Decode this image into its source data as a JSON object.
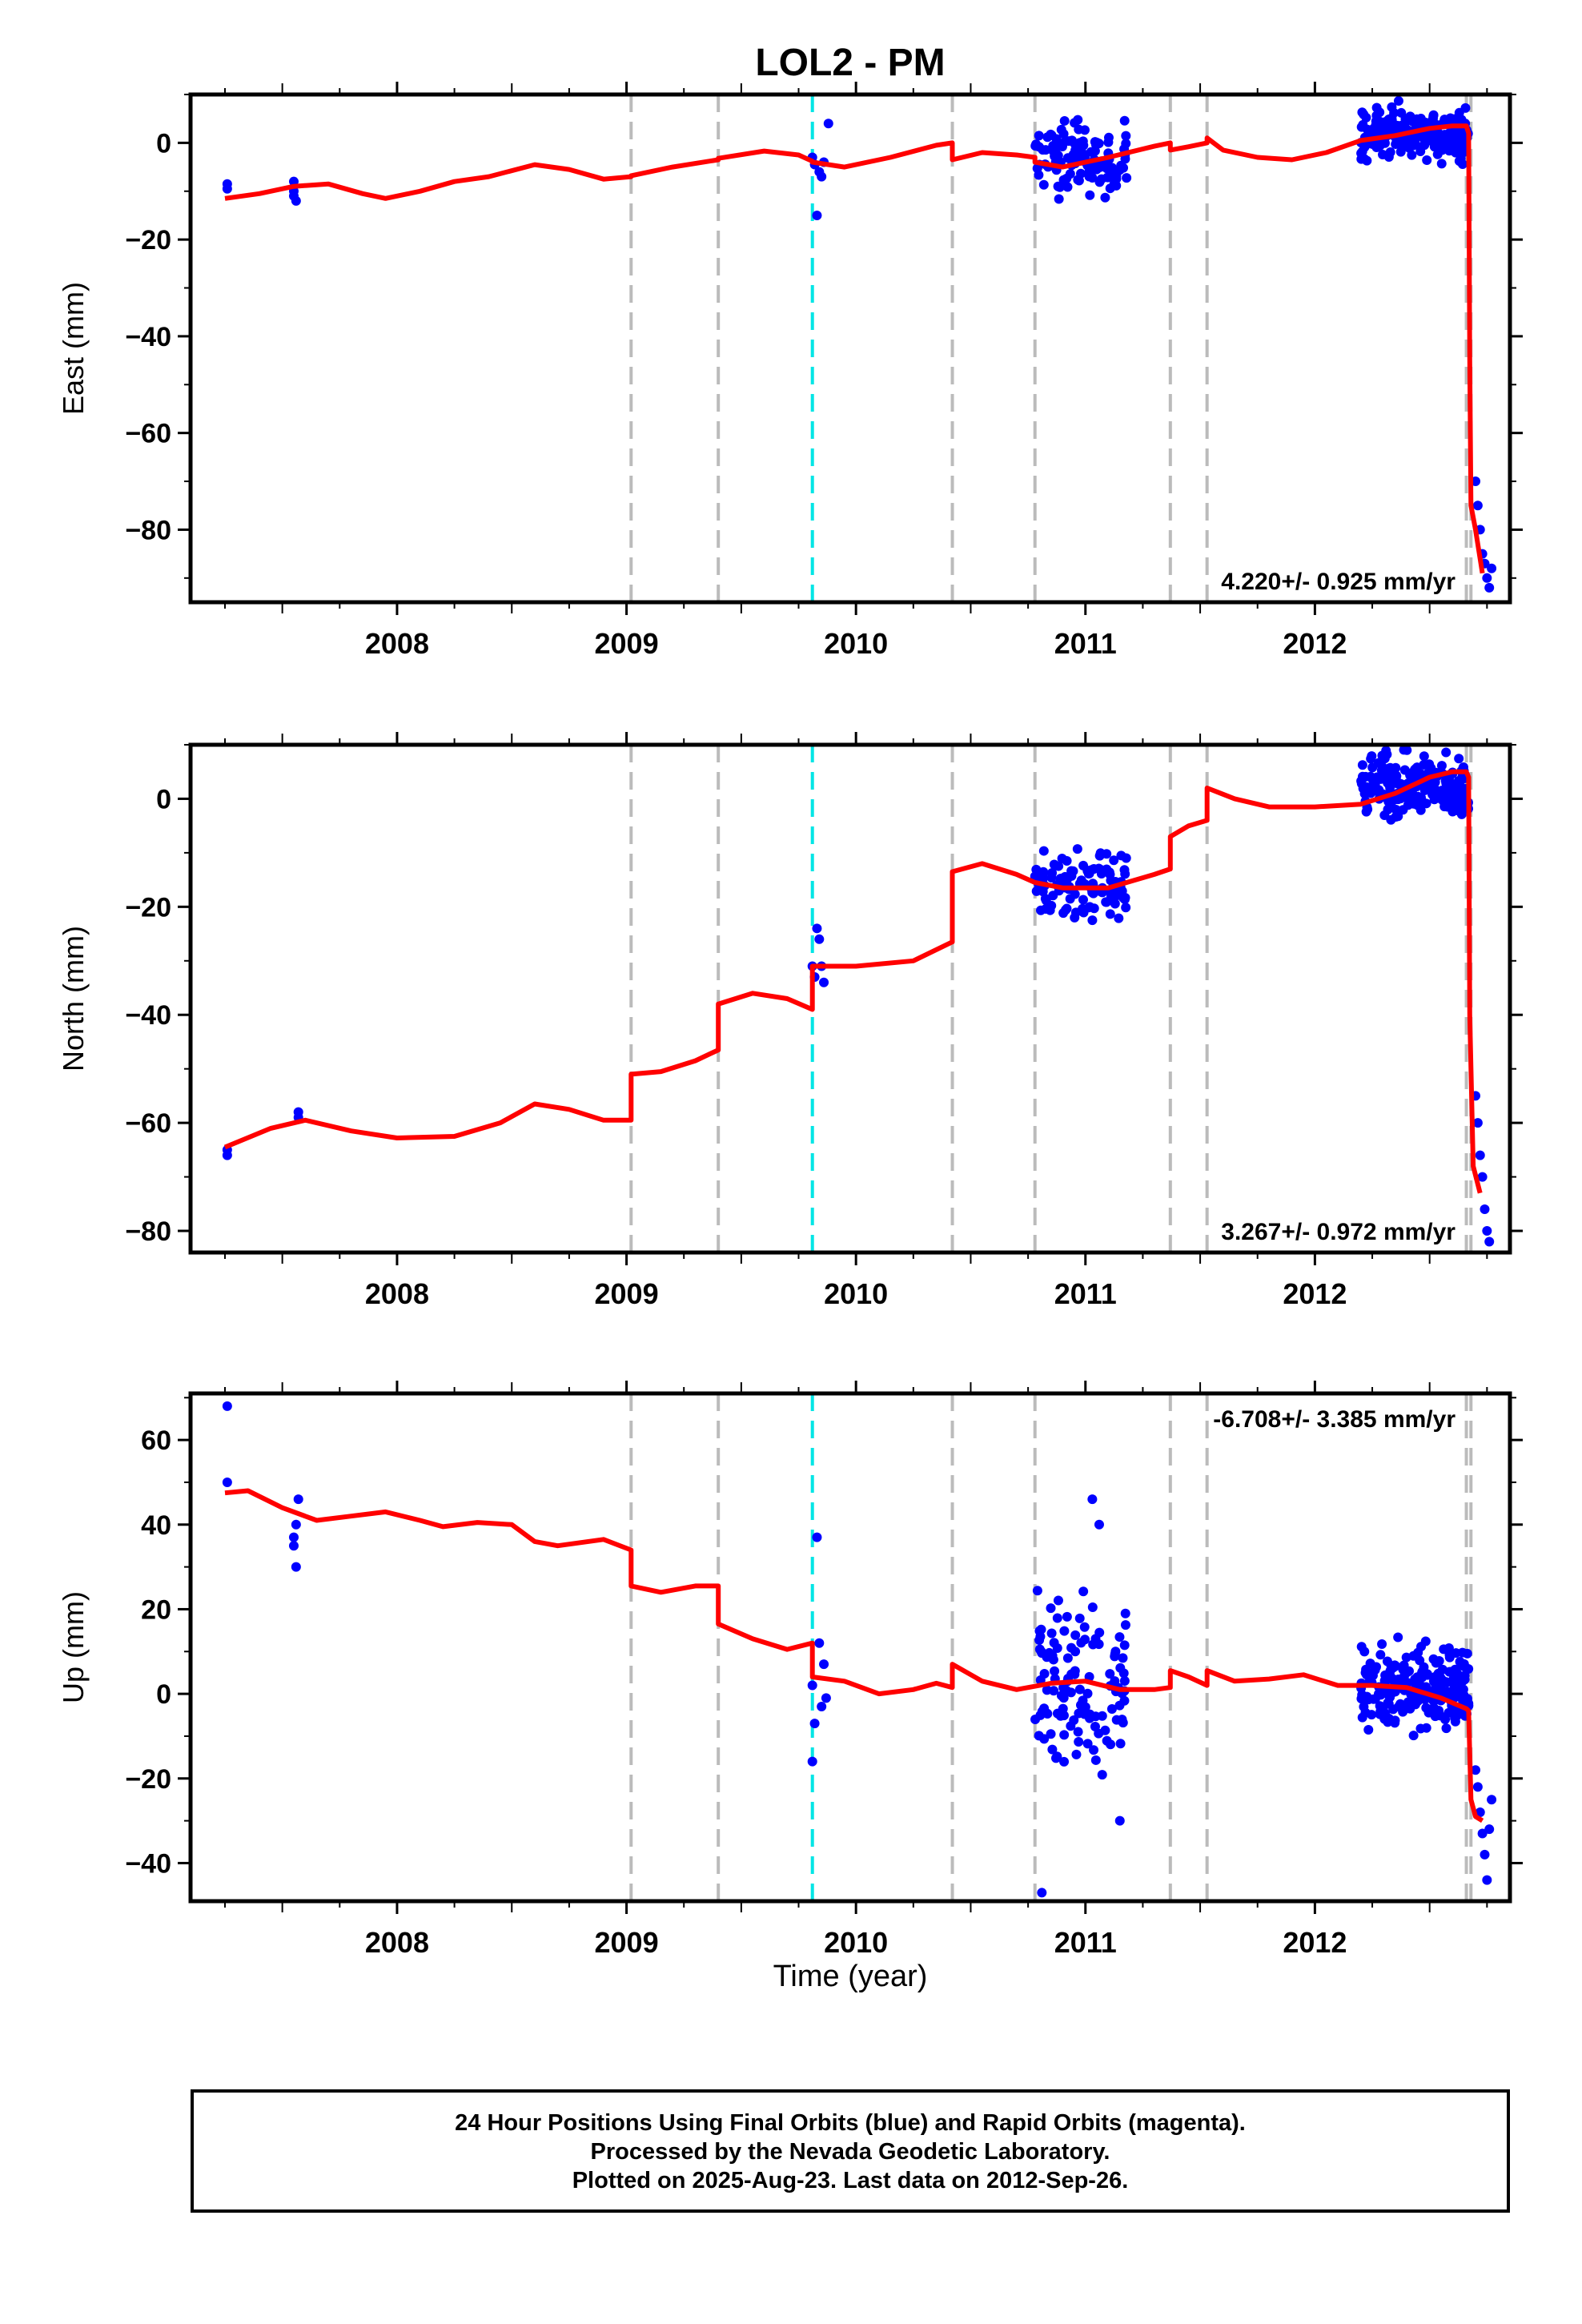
{
  "title": "LOL2 - PM",
  "xlabel": "Time (year)",
  "footer": {
    "line1": "24 Hour Positions Using Final Orbits (blue) and Rapid Orbits (magenta).",
    "line2": "Processed by the Nevada Geodetic Laboratory.",
    "line3": "Plotted on 2025-Aug-23. Last data on 2012-Sep-26."
  },
  "colors": {
    "data_points": "#0000ff",
    "model": "#ff0000",
    "break_gray": "#bbbbbb",
    "break_cyan": "#00e5e5"
  },
  "chart_data": [
    {
      "type": "scatter",
      "component": "East",
      "ylabel": "East (mm)",
      "xlim": [
        2007.1,
        2012.85
      ],
      "ylim": [
        -95,
        10
      ],
      "yticks": [
        0,
        -20,
        -40,
        -60,
        -80
      ],
      "xticks": [
        2008,
        2009,
        2010,
        2011,
        2012
      ],
      "rate_label": "4.220+/- 0.925 mm/yr",
      "rate_position": "bottom-right",
      "breaks_gray": [
        2009.02,
        2009.4,
        2010.42,
        2010.78,
        2011.37,
        2011.53,
        2012.66,
        2012.68
      ],
      "breaks_cyan": [
        2009.81
      ],
      "model": [
        [
          2007.25,
          -11.5
        ],
        [
          2007.4,
          -10.5
        ],
        [
          2007.55,
          -9
        ],
        [
          2007.7,
          -8.5
        ],
        [
          2007.85,
          -10.5
        ],
        [
          2007.95,
          -11.5
        ],
        [
          2008.1,
          -10
        ],
        [
          2008.25,
          -8
        ],
        [
          2008.4,
          -7
        ],
        [
          2008.6,
          -4.5
        ],
        [
          2008.75,
          -5.5
        ],
        [
          2008.9,
          -7.5
        ],
        [
          2009.02,
          -7
        ],
        [
          2009.02,
          -6.8
        ],
        [
          2009.2,
          -5
        ],
        [
          2009.4,
          -3.5
        ],
        [
          2009.4,
          -3.2
        ],
        [
          2009.6,
          -1.7
        ],
        [
          2009.75,
          -2.5
        ],
        [
          2009.81,
          -3.8
        ],
        [
          2009.81,
          -4
        ],
        [
          2009.95,
          -5
        ],
        [
          2010.15,
          -3
        ],
        [
          2010.35,
          -0.5
        ],
        [
          2010.42,
          0
        ],
        [
          2010.42,
          -3.5
        ],
        [
          2010.55,
          -2
        ],
        [
          2010.7,
          -2.5
        ],
        [
          2010.78,
          -3
        ],
        [
          2010.78,
          -4
        ],
        [
          2010.9,
          -5
        ],
        [
          2011.1,
          -3
        ],
        [
          2011.3,
          -0.7
        ],
        [
          2011.37,
          0
        ],
        [
          2011.37,
          -1.5
        ],
        [
          2011.45,
          -0.8
        ],
        [
          2011.53,
          0
        ],
        [
          2011.53,
          1
        ],
        [
          2011.6,
          -1.5
        ],
        [
          2011.75,
          -3
        ],
        [
          2011.9,
          -3.5
        ],
        [
          2012.05,
          -2
        ],
        [
          2012.2,
          0.5
        ],
        [
          2012.35,
          1.5
        ],
        [
          2012.5,
          3
        ],
        [
          2012.6,
          3.5
        ],
        [
          2012.66,
          3.5
        ],
        [
          2012.67,
          2
        ],
        [
          2012.675,
          -45
        ],
        [
          2012.68,
          -75
        ],
        [
          2012.7,
          -80
        ],
        [
          2012.73,
          -89
        ]
      ],
      "points": [
        [
          2007.26,
          -8.5
        ],
        [
          2007.26,
          -9.5
        ],
        [
          2007.55,
          -8
        ],
        [
          2007.55,
          -10
        ],
        [
          2007.55,
          -11
        ],
        [
          2007.56,
          -12
        ],
        [
          2009.81,
          -3
        ],
        [
          2009.82,
          -4.5
        ],
        [
          2009.83,
          -15
        ],
        [
          2009.84,
          -6
        ],
        [
          2009.85,
          -7
        ],
        [
          2009.86,
          -4
        ],
        [
          2009.88,
          4
        ],
        [
          2012.7,
          -70
        ],
        [
          2012.71,
          -75
        ],
        [
          2012.72,
          -80
        ],
        [
          2012.73,
          -85
        ],
        [
          2012.74,
          -87
        ],
        [
          2012.75,
          -90
        ],
        [
          2012.76,
          -92
        ],
        [
          2012.77,
          -88
        ]
      ],
      "clusters": [
        {
          "x_range": [
            2010.78,
            2011.18
          ],
          "y_center": -3.5,
          "y_spread": 3.5,
          "n": 120
        },
        {
          "x_range": [
            2012.2,
            2012.67
          ],
          "y_center": 2,
          "y_spread": 2.5,
          "n": 220
        }
      ]
    },
    {
      "type": "scatter",
      "component": "North",
      "ylabel": "North (mm)",
      "xlim": [
        2007.1,
        2012.85
      ],
      "ylim": [
        -84,
        10
      ],
      "yticks": [
        0,
        -20,
        -40,
        -60,
        -80
      ],
      "xticks": [
        2008,
        2009,
        2010,
        2011,
        2012
      ],
      "rate_label": "3.267+/- 0.972 mm/yr",
      "rate_position": "bottom-right",
      "breaks_gray": [
        2009.02,
        2009.4,
        2010.42,
        2010.78,
        2011.37,
        2011.53,
        2012.66,
        2012.68
      ],
      "breaks_cyan": [
        2009.81
      ],
      "model": [
        [
          2007.25,
          -64.5
        ],
        [
          2007.45,
          -61
        ],
        [
          2007.6,
          -59.5
        ],
        [
          2007.8,
          -61.5
        ],
        [
          2008.0,
          -62.8
        ],
        [
          2008.25,
          -62.5
        ],
        [
          2008.45,
          -60
        ],
        [
          2008.6,
          -56.5
        ],
        [
          2008.75,
          -57.5
        ],
        [
          2008.9,
          -59.5
        ],
        [
          2009.02,
          -59.5
        ],
        [
          2009.02,
          -51
        ],
        [
          2009.15,
          -50.5
        ],
        [
          2009.3,
          -48.5
        ],
        [
          2009.4,
          -46.5
        ],
        [
          2009.4,
          -38
        ],
        [
          2009.55,
          -36
        ],
        [
          2009.7,
          -37
        ],
        [
          2009.81,
          -39
        ],
        [
          2009.81,
          -31
        ],
        [
          2010.0,
          -31
        ],
        [
          2010.25,
          -30
        ],
        [
          2010.42,
          -26.5
        ],
        [
          2010.42,
          -13.5
        ],
        [
          2010.55,
          -12
        ],
        [
          2010.7,
          -14
        ],
        [
          2010.78,
          -15.5
        ],
        [
          2010.9,
          -16.5
        ],
        [
          2011.1,
          -16.5
        ],
        [
          2011.3,
          -14
        ],
        [
          2011.37,
          -13
        ],
        [
          2011.37,
          -7
        ],
        [
          2011.45,
          -5
        ],
        [
          2011.53,
          -4
        ],
        [
          2011.53,
          2
        ],
        [
          2011.65,
          0
        ],
        [
          2011.8,
          -1.5
        ],
        [
          2012.0,
          -1.5
        ],
        [
          2012.2,
          -1
        ],
        [
          2012.35,
          1
        ],
        [
          2012.5,
          4
        ],
        [
          2012.6,
          5
        ],
        [
          2012.66,
          5
        ],
        [
          2012.67,
          4
        ],
        [
          2012.675,
          -40
        ],
        [
          2012.69,
          -68
        ],
        [
          2012.72,
          -73
        ]
      ],
      "points": [
        [
          2007.26,
          -65
        ],
        [
          2007.26,
          -66
        ],
        [
          2007.57,
          -58
        ],
        [
          2007.57,
          -59
        ],
        [
          2009.81,
          -31
        ],
        [
          2009.82,
          -33
        ],
        [
          2009.83,
          -24
        ],
        [
          2009.84,
          -26
        ],
        [
          2009.85,
          -31
        ],
        [
          2009.86,
          -34
        ],
        [
          2012.7,
          -55
        ],
        [
          2012.71,
          -60
        ],
        [
          2012.72,
          -66
        ],
        [
          2012.73,
          -70
        ],
        [
          2012.74,
          -76
        ],
        [
          2012.75,
          -80
        ],
        [
          2012.76,
          -82
        ]
      ],
      "clusters": [
        {
          "x_range": [
            2010.78,
            2011.18
          ],
          "y_center": -16,
          "y_spread": 3,
          "n": 120
        },
        {
          "x_range": [
            2012.2,
            2012.67
          ],
          "y_center": 2,
          "y_spread": 2.8,
          "n": 220
        }
      ]
    },
    {
      "type": "scatter",
      "component": "Up",
      "ylabel": "Up (mm)",
      "xlim": [
        2007.1,
        2012.85
      ],
      "ylim": [
        -49,
        71
      ],
      "yticks": [
        60,
        40,
        20,
        0,
        -20,
        -40
      ],
      "xticks": [
        2008,
        2009,
        2010,
        2011,
        2012
      ],
      "rate_label": "-6.708+/- 3.385 mm/yr",
      "rate_position": "top-right",
      "breaks_gray": [
        2009.02,
        2009.4,
        2010.42,
        2010.78,
        2011.37,
        2011.53,
        2012.66,
        2012.68
      ],
      "breaks_cyan": [
        2009.81
      ],
      "model": [
        [
          2007.25,
          47.5
        ],
        [
          2007.35,
          48
        ],
        [
          2007.5,
          44
        ],
        [
          2007.65,
          41
        ],
        [
          2007.8,
          42
        ],
        [
          2007.95,
          43
        ],
        [
          2008.1,
          41
        ],
        [
          2008.2,
          39.5
        ],
        [
          2008.35,
          40.5
        ],
        [
          2008.5,
          40
        ],
        [
          2008.6,
          36
        ],
        [
          2008.7,
          35
        ],
        [
          2008.9,
          36.5
        ],
        [
          2009.02,
          34
        ],
        [
          2009.02,
          25.5
        ],
        [
          2009.15,
          24
        ],
        [
          2009.3,
          25.5
        ],
        [
          2009.4,
          25.5
        ],
        [
          2009.4,
          16.5
        ],
        [
          2009.55,
          13
        ],
        [
          2009.7,
          10.5
        ],
        [
          2009.81,
          12
        ],
        [
          2009.81,
          4
        ],
        [
          2009.95,
          3
        ],
        [
          2010.1,
          0
        ],
        [
          2010.25,
          1
        ],
        [
          2010.35,
          2.5
        ],
        [
          2010.42,
          1.5
        ],
        [
          2010.42,
          7
        ],
        [
          2010.55,
          3
        ],
        [
          2010.7,
          1
        ],
        [
          2010.85,
          2.5
        ],
        [
          2011.0,
          3
        ],
        [
          2011.15,
          1
        ],
        [
          2011.3,
          1
        ],
        [
          2011.37,
          1.5
        ],
        [
          2011.37,
          5.5
        ],
        [
          2011.45,
          4
        ],
        [
          2011.53,
          2
        ],
        [
          2011.53,
          5.5
        ],
        [
          2011.65,
          3
        ],
        [
          2011.8,
          3.5
        ],
        [
          2011.95,
          4.5
        ],
        [
          2012.1,
          2
        ],
        [
          2012.25,
          2
        ],
        [
          2012.4,
          1.5
        ],
        [
          2012.55,
          -1
        ],
        [
          2012.66,
          -3.5
        ],
        [
          2012.67,
          -4
        ],
        [
          2012.68,
          -25
        ],
        [
          2012.7,
          -29
        ],
        [
          2012.73,
          -30
        ]
      ],
      "points": [
        [
          2007.26,
          68
        ],
        [
          2007.26,
          50
        ],
        [
          2007.57,
          46
        ],
        [
          2007.56,
          40
        ],
        [
          2007.55,
          37
        ],
        [
          2007.55,
          35
        ],
        [
          2007.56,
          30
        ],
        [
          2009.81,
          2
        ],
        [
          2009.82,
          -7
        ],
        [
          2009.81,
          -16
        ],
        [
          2009.83,
          37
        ],
        [
          2009.84,
          12
        ],
        [
          2009.85,
          -3
        ],
        [
          2009.86,
          7
        ],
        [
          2009.87,
          -1
        ],
        [
          2010.81,
          -47
        ],
        [
          2011.03,
          46
        ],
        [
          2011.06,
          40
        ],
        [
          2011.15,
          -30
        ],
        [
          2012.7,
          -18
        ],
        [
          2012.71,
          -22
        ],
        [
          2012.72,
          -28
        ],
        [
          2012.73,
          -33
        ],
        [
          2012.74,
          -38
        ],
        [
          2012.75,
          -44
        ],
        [
          2012.76,
          -32
        ],
        [
          2012.77,
          -25
        ]
      ],
      "clusters": [
        {
          "x_range": [
            2010.78,
            2011.18
          ],
          "y_center": 2,
          "y_spread": 9,
          "n": 120
        },
        {
          "x_range": [
            2012.2,
            2012.67
          ],
          "y_center": 2,
          "y_spread": 5,
          "n": 220
        }
      ]
    }
  ]
}
